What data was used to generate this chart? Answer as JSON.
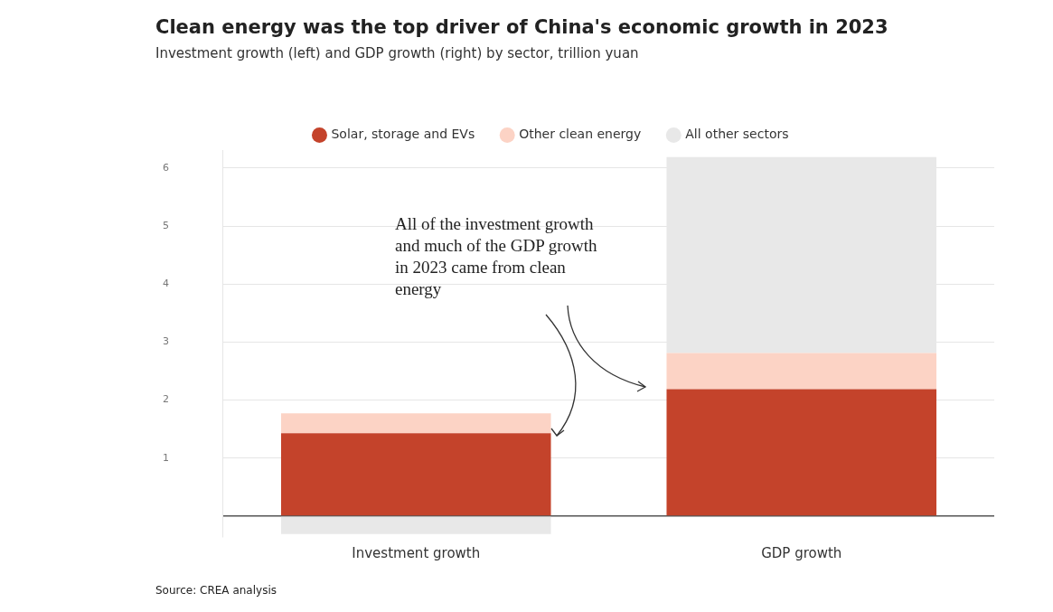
{
  "chart_data": {
    "type": "bar",
    "title": "Clean energy was the top driver of China's economic growth in 2023",
    "subtitle": "Investment growth (left) and GDP growth (right) by sector, trillion yuan",
    "categories": [
      "Investment growth",
      "GDP growth"
    ],
    "stacked": true,
    "series": [
      {
        "name": "Solar, storage and EVs",
        "color": "#c4432b",
        "values": [
          1.43,
          2.19
        ]
      },
      {
        "name": "Other clean energy",
        "color": "#fcd3c5",
        "values": [
          0.34,
          0.62
        ]
      },
      {
        "name": "All other sectors",
        "color": "#e8e8e8",
        "values": [
          -0.31,
          3.38
        ]
      }
    ],
    "ylim": [
      -0.35,
      6.3
    ],
    "yticks": [
      {
        "value": 0,
        "label": null
      },
      1,
      2,
      3,
      4,
      5,
      6
    ],
    "grid": "y",
    "legend": "top",
    "annotations": [
      "All of the investment growth and much of the GDP growth in 2023 came from clean energy",
      "Source: CREA analysis"
    ]
  }
}
